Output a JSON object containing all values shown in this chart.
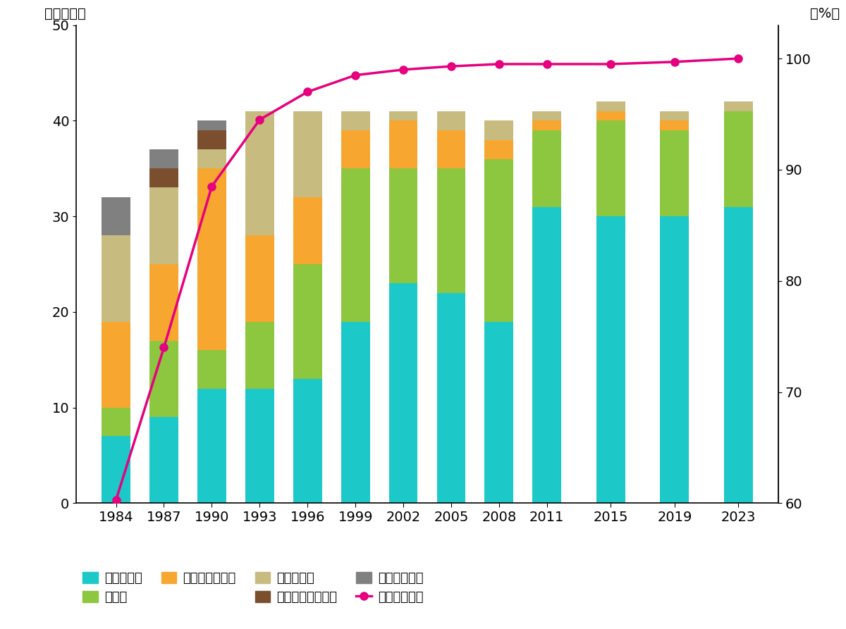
{
  "years": [
    1984,
    1987,
    1990,
    1993,
    1996,
    1999,
    2002,
    2005,
    2008,
    2011,
    2015,
    2019,
    2023
  ],
  "bar_data": {
    "大変きれい": [
      7,
      9,
      12,
      12,
      13,
      19,
      23,
      22,
      19,
      31,
      30,
      30,
      31
    ],
    "きれい": [
      3,
      8,
      4,
      7,
      12,
      16,
      12,
      13,
      17,
      8,
      10,
      9,
      10
    ],
    "やや汚れている": [
      9,
      8,
      19,
      9,
      7,
      4,
      5,
      4,
      2,
      1,
      1,
      1,
      0
    ],
    "汚れている": [
      9,
      8,
      2,
      13,
      9,
      2,
      1,
      2,
      2,
      1,
      1,
      1,
      1
    ],
    "非常に汚れている": [
      0,
      2,
      2,
      0,
      0,
      0,
      0,
      0,
      0,
      0,
      0,
      0,
      0
    ],
    "評価できない": [
      4,
      2,
      1,
      0,
      0,
      0,
      0,
      0,
      0,
      0,
      0,
      0,
      0
    ]
  },
  "sewage_rate": [
    60.3,
    74.0,
    88.5,
    94.5,
    97.0,
    98.5,
    99.0,
    99.3,
    99.5,
    99.5,
    99.5,
    99.7,
    100.0
  ],
  "colors": {
    "大変きれい": "#1DC8C8",
    "きれい": "#8DC63F",
    "やや汚れている": "#F7A730",
    "汚れている": "#C8BB80",
    "非常に汚れている": "#7B4F2E",
    "評価できない": "#808080"
  },
  "sewage_color": "#E6007F",
  "left_ylim": [
    0,
    50
  ],
  "right_ylim": [
    60,
    103
  ],
  "left_yticks": [
    0,
    10,
    20,
    30,
    40,
    50
  ],
  "right_yticks": [
    60,
    70,
    80,
    90,
    100
  ],
  "left_ylabel": "（地点数）",
  "right_ylabel": "（%）",
  "bar_order": [
    "大変きれい",
    "きれい",
    "やや汚れている",
    "汚れている",
    "非常に汚れている",
    "評価できない"
  ],
  "legend_row1": [
    "大変きれい",
    "きれい",
    "やや汚れている"
  ],
  "legend_row2": [
    "汚れている",
    "非常に汚れている",
    "評価できない"
  ],
  "sewage_legend": "下水道普及率",
  "bar_width": 1.8,
  "tick_fontsize": 14,
  "label_fontsize": 14,
  "legend_fontsize": 13
}
